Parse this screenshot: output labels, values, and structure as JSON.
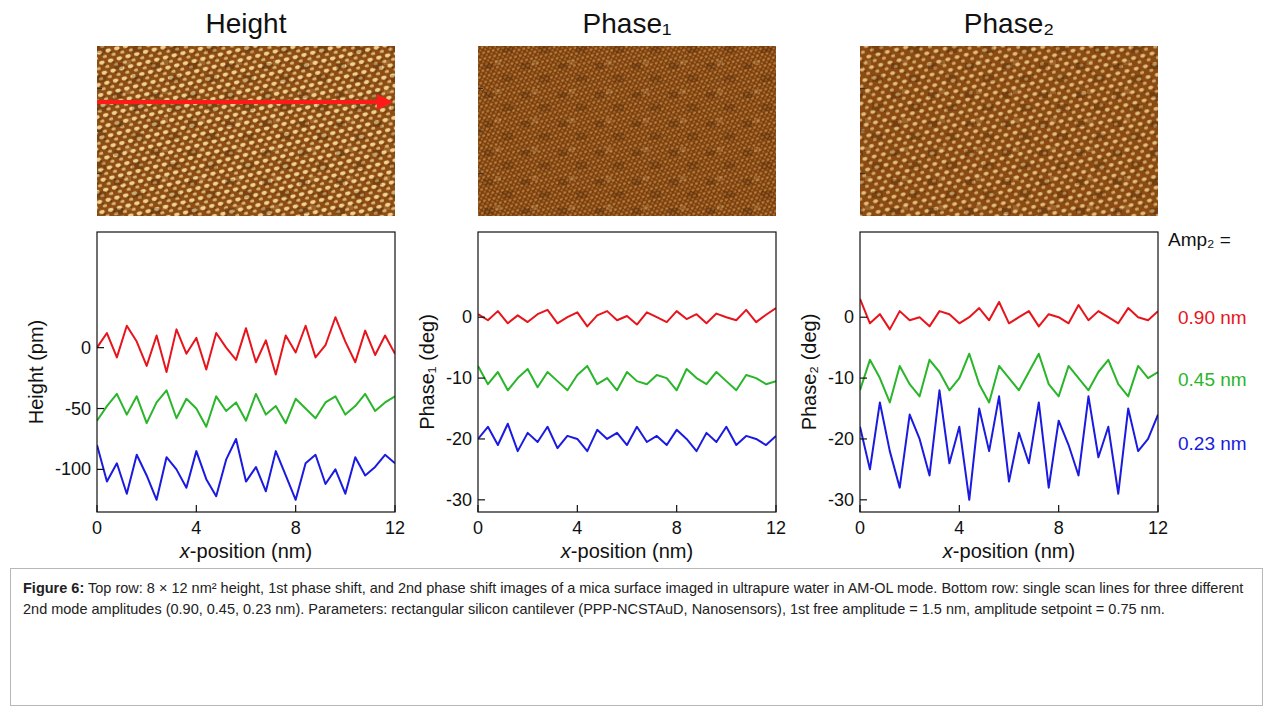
{
  "figure": {
    "caption_label": "Figure 6:",
    "caption": "Top row: 8 × 12 nm² height, 1st phase shift, and 2nd phase shift images of a mica surface imaged in ultrapure water in AM-OL mode. Bottom row: single scan lines for three different 2nd mode amplitudes (0.90, 0.45, 0.23 nm). Parameters: rectangular silicon cantilever (PPP-NCSTAuD, Nanosensors), 1st free amplitude = 1.5 nm, amplitude setpoint = 0.75 nm."
  },
  "chart_data": [
    {
      "type": "line",
      "title": "Height",
      "x_label": "x-position (nm)",
      "y_label": "Height (pm)",
      "x": [
        0,
        0.4,
        0.8,
        1.2,
        1.6,
        2,
        2.4,
        2.8,
        3.2,
        3.6,
        4,
        4.4,
        4.8,
        5.2,
        5.6,
        6,
        6.4,
        6.8,
        7.2,
        7.6,
        8,
        8.4,
        8.8,
        9.2,
        9.6,
        10,
        10.4,
        10.8,
        11.2,
        11.6,
        12
      ],
      "xlim": [
        0,
        12
      ],
      "xticks": [
        0,
        4,
        8,
        12
      ],
      "ylim": [
        -135,
        95
      ],
      "yticks": [
        -100,
        -50,
        0
      ],
      "series": [
        {
          "color": "#e8141c",
          "values": [
            0,
            12,
            -8,
            18,
            5,
            -15,
            10,
            -20,
            15,
            -5,
            8,
            -18,
            12,
            0,
            -10,
            16,
            -12,
            6,
            -22,
            10,
            -4,
            18,
            -8,
            2,
            25,
            5,
            -12,
            14,
            -6,
            10,
            -5
          ]
        },
        {
          "color": "#2ab52a",
          "values": [
            -60,
            -48,
            -38,
            -55,
            -40,
            -62,
            -45,
            -35,
            -58,
            -42,
            -50,
            -65,
            -40,
            -52,
            -45,
            -60,
            -38,
            -55,
            -48,
            -62,
            -42,
            -50,
            -58,
            -45,
            -40,
            -55,
            -48,
            -38,
            -52,
            -45,
            -40
          ]
        },
        {
          "color": "#1a1ae0",
          "values": [
            -80,
            -110,
            -95,
            -120,
            -88,
            -105,
            -125,
            -90,
            -100,
            -115,
            -85,
            -108,
            -122,
            -92,
            -75,
            -110,
            -98,
            -118,
            -85,
            -105,
            -125,
            -95,
            -88,
            -112,
            -100,
            -120,
            -90,
            -105,
            -98,
            -88,
            -95
          ]
        }
      ]
    },
    {
      "type": "line",
      "title": "Phase₁",
      "x_label": "x-position (nm)",
      "y_label": "Phase₁ (deg)",
      "x": [
        0,
        0.4,
        0.8,
        1.2,
        1.6,
        2,
        2.4,
        2.8,
        3.2,
        3.6,
        4,
        4.4,
        4.8,
        5.2,
        5.6,
        6,
        6.4,
        6.8,
        7.2,
        7.6,
        8,
        8.4,
        8.8,
        9.2,
        9.6,
        10,
        10.4,
        10.8,
        11.2,
        11.6,
        12
      ],
      "xlim": [
        0,
        12
      ],
      "xticks": [
        0,
        4,
        8,
        12
      ],
      "ylim": [
        -32,
        14
      ],
      "yticks": [
        -30,
        -20,
        -10,
        0
      ],
      "series": [
        {
          "color": "#e8141c",
          "values": [
            0.5,
            -0.5,
            1,
            -1,
            0.3,
            -0.8,
            0.5,
            1.2,
            -1,
            0,
            0.8,
            -1.5,
            0.3,
            1,
            -0.5,
            0.2,
            -1.2,
            0.8,
            0,
            -0.8,
            1,
            -0.3,
            0.5,
            -1,
            0.6,
            0,
            -0.5,
            1.2,
            -0.8,
            0.4,
            1.5
          ]
        },
        {
          "color": "#2ab52a",
          "values": [
            -8,
            -11,
            -9,
            -12,
            -10,
            -8.5,
            -11.5,
            -9,
            -10.5,
            -12,
            -9.5,
            -8,
            -11,
            -10,
            -12,
            -9,
            -10.5,
            -11,
            -9.5,
            -10,
            -12,
            -8.5,
            -10,
            -11,
            -9,
            -10.5,
            -12,
            -9.5,
            -10,
            -11,
            -10.5
          ]
        },
        {
          "color": "#1a1ae0",
          "values": [
            -20,
            -18,
            -21,
            -17.5,
            -22,
            -19,
            -20.5,
            -18,
            -21.5,
            -19.5,
            -20,
            -22,
            -18.5,
            -20,
            -19,
            -21,
            -18,
            -20.5,
            -19.5,
            -21,
            -18.5,
            -20,
            -22,
            -19,
            -20.5,
            -18,
            -21,
            -19.5,
            -20,
            -21,
            -19.5
          ]
        }
      ]
    },
    {
      "type": "line",
      "title": "Phase₂",
      "x_label": "x-position (nm)",
      "y_label": "Phase₂ (deg)",
      "x": [
        0,
        0.4,
        0.8,
        1.2,
        1.6,
        2,
        2.4,
        2.8,
        3.2,
        3.6,
        4,
        4.4,
        4.8,
        5.2,
        5.6,
        6,
        6.4,
        6.8,
        7.2,
        7.6,
        8,
        8.4,
        8.8,
        9.2,
        9.6,
        10,
        10.4,
        10.8,
        11.2,
        11.6,
        12
      ],
      "xlim": [
        0,
        12
      ],
      "xticks": [
        0,
        4,
        8,
        12
      ],
      "ylim": [
        -32,
        14
      ],
      "yticks": [
        -30,
        -20,
        -10,
        0
      ],
      "annotations": [
        "Amp₂ ="
      ],
      "legend": "right",
      "series": [
        {
          "name": "0.90 nm",
          "color": "#e8141c",
          "values": [
            3,
            -1,
            0.5,
            -2,
            1,
            -0.5,
            0,
            -1.5,
            1,
            0.5,
            -1,
            0,
            1.5,
            -0.5,
            2.5,
            -1,
            0,
            1,
            -1.5,
            0.5,
            0,
            -1,
            2,
            -0.5,
            1,
            0,
            -1,
            1.5,
            0,
            -0.5,
            1
          ]
        },
        {
          "name": "0.45 nm",
          "color": "#2ab52a",
          "values": [
            -12,
            -7,
            -10,
            -14,
            -8,
            -11,
            -13,
            -7,
            -9,
            -12,
            -10,
            -6,
            -11,
            -14,
            -8,
            -10,
            -12,
            -9,
            -6,
            -11,
            -13,
            -8,
            -10,
            -12,
            -9,
            -7,
            -11,
            -13,
            -8,
            -10,
            -9
          ]
        },
        {
          "name": "0.23 nm",
          "color": "#1a1ae0",
          "values": [
            -18,
            -25,
            -14,
            -22,
            -28,
            -16,
            -20,
            -26,
            -12,
            -24,
            -18,
            -30,
            -15,
            -22,
            -13,
            -27,
            -19,
            -24,
            -14,
            -28,
            -17,
            -21,
            -26,
            -13,
            -23,
            -18,
            -29,
            -15,
            -22,
            -20,
            -16
          ]
        }
      ]
    }
  ]
}
